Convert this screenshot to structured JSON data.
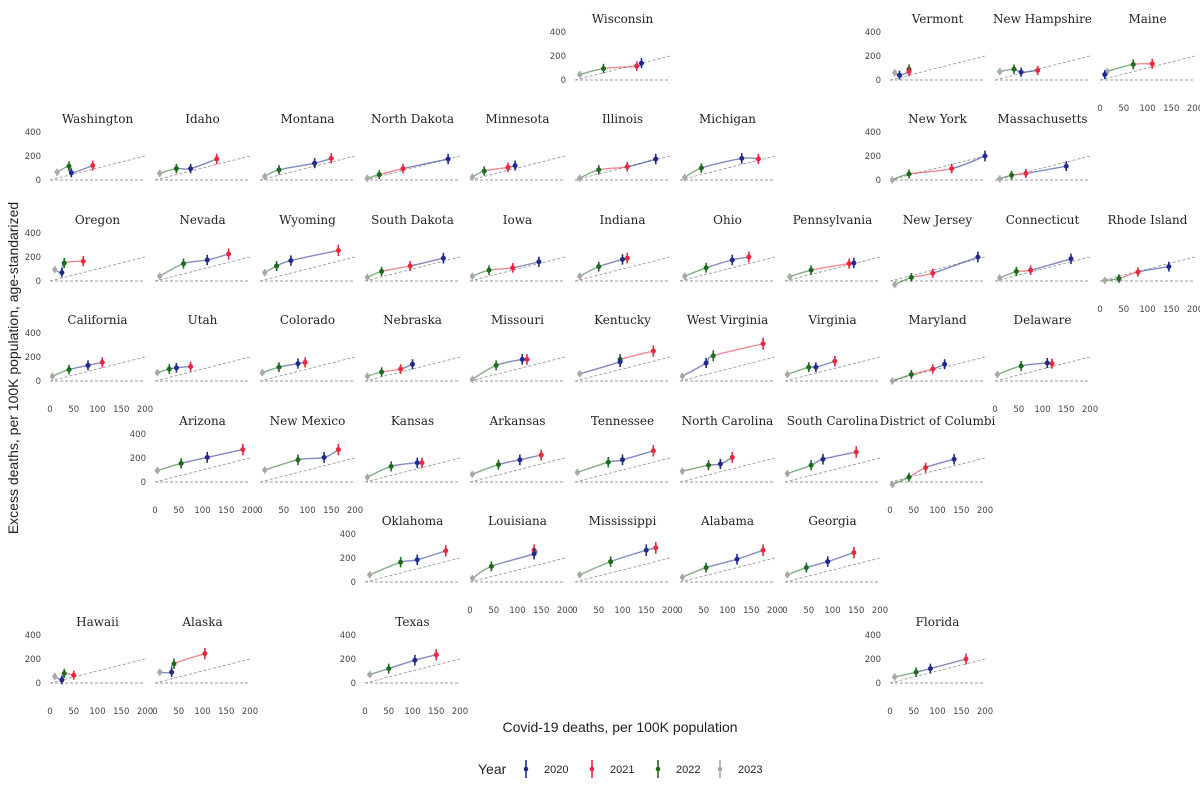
{
  "chart_data": {
    "type": "scatter",
    "xlabel": "Covid-19 deaths, per 100K population",
    "ylabel": "Excess deaths, per 100K population, age-standarized",
    "xlim": [
      0,
      200
    ],
    "ylim": [
      -20,
      400
    ],
    "x_ticks": [
      0,
      50,
      100,
      150,
      200
    ],
    "y_ticks": [
      0,
      200,
      400
    ],
    "reference_lines": [
      "y = 0 (dashed)",
      "y = x (dashed)"
    ],
    "grid": false,
    "legend": {
      "title": "Year",
      "placement": "bottom",
      "entries": [
        {
          "label": "2020",
          "color": "#1f2a8c"
        },
        {
          "label": "2021",
          "color": "#e8283c"
        },
        {
          "label": "2022",
          "color": "#1e6b1e"
        },
        {
          "label": "2023",
          "color": "#a8a8a8"
        }
      ]
    },
    "panels": [
      {
        "name": "Wisconsin",
        "pts": [
          [
            140,
            140
          ],
          [
            130,
            115
          ],
          [
            60,
            95
          ],
          [
            10,
            45
          ]
        ]
      },
      {
        "name": "Vermont",
        "pts": [
          [
            20,
            40
          ],
          [
            40,
            70
          ],
          [
            40,
            90
          ],
          [
            10,
            60
          ]
        ]
      },
      {
        "name": "New Hampshire",
        "pts": [
          [
            55,
            65
          ],
          [
            90,
            80
          ],
          [
            40,
            90
          ],
          [
            10,
            70
          ]
        ]
      },
      {
        "name": "Maine",
        "pts": [
          [
            10,
            45
          ],
          [
            110,
            135
          ],
          [
            70,
            130
          ],
          [
            15,
            70
          ]
        ]
      },
      {
        "name": "Washington",
        "pts": [
          [
            45,
            60
          ],
          [
            90,
            120
          ],
          [
            40,
            115
          ],
          [
            15,
            65
          ]
        ]
      },
      {
        "name": "Idaho",
        "pts": [
          [
            75,
            95
          ],
          [
            130,
            175
          ],
          [
            45,
            95
          ],
          [
            10,
            55
          ]
        ]
      },
      {
        "name": "Montana",
        "pts": [
          [
            115,
            140
          ],
          [
            150,
            180
          ],
          [
            40,
            85
          ],
          [
            10,
            30
          ]
        ]
      },
      {
        "name": "North Dakota",
        "pts": [
          [
            175,
            175
          ],
          [
            80,
            95
          ],
          [
            30,
            45
          ],
          [
            5,
            15
          ]
        ]
      },
      {
        "name": "Minnesota",
        "pts": [
          [
            95,
            120
          ],
          [
            80,
            105
          ],
          [
            30,
            75
          ],
          [
            5,
            25
          ]
        ]
      },
      {
        "name": "Illinois",
        "pts": [
          [
            170,
            175
          ],
          [
            110,
            110
          ],
          [
            50,
            85
          ],
          [
            10,
            15
          ]
        ]
      },
      {
        "name": "Michigan",
        "pts": [
          [
            130,
            180
          ],
          [
            165,
            175
          ],
          [
            45,
            100
          ],
          [
            10,
            20
          ]
        ]
      },
      {
        "name": "New York",
        "pts": [
          [
            200,
            200
          ],
          [
            130,
            95
          ],
          [
            40,
            50
          ],
          [
            5,
            0
          ]
        ]
      },
      {
        "name": "Massachusetts",
        "pts": [
          [
            150,
            115
          ],
          [
            65,
            55
          ],
          [
            35,
            40
          ],
          [
            10,
            10
          ]
        ]
      },
      {
        "name": "Oregon",
        "pts": [
          [
            25,
            70
          ],
          [
            70,
            165
          ],
          [
            30,
            150
          ],
          [
            10,
            95
          ]
        ]
      },
      {
        "name": "Nevada",
        "pts": [
          [
            110,
            175
          ],
          [
            155,
            225
          ],
          [
            60,
            145
          ],
          [
            10,
            40
          ]
        ]
      },
      {
        "name": "Wyoming",
        "pts": [
          [
            65,
            170
          ],
          [
            165,
            255
          ],
          [
            35,
            125
          ],
          [
            10,
            70
          ]
        ]
      },
      {
        "name": "South Dakota",
        "pts": [
          [
            165,
            190
          ],
          [
            95,
            125
          ],
          [
            35,
            80
          ],
          [
            5,
            30
          ]
        ]
      },
      {
        "name": "Iowa",
        "pts": [
          [
            145,
            160
          ],
          [
            90,
            110
          ],
          [
            40,
            90
          ],
          [
            5,
            40
          ]
        ]
      },
      {
        "name": "Indiana",
        "pts": [
          [
            100,
            180
          ],
          [
            110,
            190
          ],
          [
            50,
            120
          ],
          [
            10,
            40
          ]
        ]
      },
      {
        "name": "Ohio",
        "pts": [
          [
            110,
            175
          ],
          [
            145,
            200
          ],
          [
            55,
            110
          ],
          [
            10,
            40
          ]
        ]
      },
      {
        "name": "Pennsylvania",
        "pts": [
          [
            145,
            150
          ],
          [
            135,
            145
          ],
          [
            55,
            90
          ],
          [
            10,
            35
          ]
        ]
      },
      {
        "name": "New Jersey",
        "pts": [
          [
            185,
            200
          ],
          [
            90,
            65
          ],
          [
            45,
            30
          ],
          [
            10,
            -30
          ]
        ]
      },
      {
        "name": "Connecticut",
        "pts": [
          [
            160,
            185
          ],
          [
            75,
            90
          ],
          [
            45,
            80
          ],
          [
            10,
            25
          ]
        ]
      },
      {
        "name": "Rhode Island",
        "pts": [
          [
            145,
            120
          ],
          [
            80,
            75
          ],
          [
            40,
            20
          ],
          [
            10,
            5
          ]
        ]
      },
      {
        "name": "California",
        "pts": [
          [
            80,
            130
          ],
          [
            110,
            155
          ],
          [
            40,
            95
          ],
          [
            5,
            40
          ]
        ]
      },
      {
        "name": "Utah",
        "pts": [
          [
            45,
            110
          ],
          [
            75,
            120
          ],
          [
            30,
            100
          ],
          [
            5,
            70
          ]
        ]
      },
      {
        "name": "Colorado",
        "pts": [
          [
            80,
            145
          ],
          [
            95,
            155
          ],
          [
            40,
            115
          ],
          [
            5,
            70
          ]
        ]
      },
      {
        "name": "Nebraska",
        "pts": [
          [
            100,
            140
          ],
          [
            75,
            100
          ],
          [
            35,
            75
          ],
          [
            5,
            40
          ]
        ]
      },
      {
        "name": "Missouri",
        "pts": [
          [
            110,
            180
          ],
          [
            120,
            180
          ],
          [
            55,
            130
          ],
          [
            5,
            15
          ]
        ]
      },
      {
        "name": "Kentucky",
        "pts": [
          [
            95,
            160
          ],
          [
            165,
            250
          ],
          [
            95,
            180
          ],
          [
            10,
            60
          ]
        ]
      },
      {
        "name": "West Virginia",
        "pts": [
          [
            55,
            150
          ],
          [
            175,
            310
          ],
          [
            70,
            210
          ],
          [
            5,
            40
          ]
        ]
      },
      {
        "name": "Virginia",
        "pts": [
          [
            65,
            115
          ],
          [
            105,
            165
          ],
          [
            50,
            115
          ],
          [
            5,
            55
          ]
        ]
      },
      {
        "name": "Maryland",
        "pts": [
          [
            115,
            140
          ],
          [
            90,
            100
          ],
          [
            45,
            55
          ],
          [
            5,
            0
          ]
        ]
      },
      {
        "name": "Delaware",
        "pts": [
          [
            110,
            150
          ],
          [
            120,
            145
          ],
          [
            55,
            125
          ],
          [
            5,
            55
          ]
        ]
      },
      {
        "name": "Arizona",
        "pts": [
          [
            110,
            205
          ],
          [
            185,
            270
          ],
          [
            55,
            155
          ],
          [
            5,
            95
          ]
        ]
      },
      {
        "name": "New Mexico",
        "pts": [
          [
            135,
            205
          ],
          [
            165,
            270
          ],
          [
            80,
            185
          ],
          [
            10,
            100
          ]
        ]
      },
      {
        "name": "Kansas",
        "pts": [
          [
            110,
            160
          ],
          [
            120,
            160
          ],
          [
            55,
            130
          ],
          [
            5,
            40
          ]
        ]
      },
      {
        "name": "Arkansas",
        "pts": [
          [
            105,
            185
          ],
          [
            150,
            225
          ],
          [
            60,
            145
          ],
          [
            5,
            65
          ]
        ]
      },
      {
        "name": "Tennessee",
        "pts": [
          [
            100,
            185
          ],
          [
            165,
            260
          ],
          [
            70,
            165
          ],
          [
            5,
            80
          ]
        ]
      },
      {
        "name": "North Carolina",
        "pts": [
          [
            85,
            150
          ],
          [
            110,
            205
          ],
          [
            60,
            140
          ],
          [
            5,
            90
          ]
        ]
      },
      {
        "name": "South Carolina",
        "pts": [
          [
            80,
            190
          ],
          [
            150,
            250
          ],
          [
            55,
            140
          ],
          [
            5,
            70
          ]
        ]
      },
      {
        "name": "District of Columbi",
        "pts": [
          [
            135,
            190
          ],
          [
            75,
            120
          ],
          [
            40,
            40
          ],
          [
            5,
            -20
          ]
        ]
      },
      {
        "name": "Oklahoma",
        "pts": [
          [
            110,
            185
          ],
          [
            170,
            260
          ],
          [
            75,
            165
          ],
          [
            10,
            60
          ]
        ]
      },
      {
        "name": "Louisiana",
        "pts": [
          [
            135,
            235
          ],
          [
            135,
            265
          ],
          [
            45,
            130
          ],
          [
            5,
            30
          ]
        ]
      },
      {
        "name": "Mississippi",
        "pts": [
          [
            150,
            265
          ],
          [
            170,
            285
          ],
          [
            75,
            170
          ],
          [
            10,
            60
          ]
        ]
      },
      {
        "name": "Alabama",
        "pts": [
          [
            120,
            190
          ],
          [
            175,
            265
          ],
          [
            55,
            120
          ],
          [
            5,
            40
          ]
        ]
      },
      {
        "name": "Georgia",
        "pts": [
          [
            90,
            170
          ],
          [
            145,
            245
          ],
          [
            45,
            120
          ],
          [
            5,
            60
          ]
        ]
      },
      {
        "name": "Hawaii",
        "pts": [
          [
            25,
            25
          ],
          [
            50,
            65
          ],
          [
            30,
            80
          ],
          [
            10,
            55
          ]
        ]
      },
      {
        "name": "Alaska",
        "pts": [
          [
            35,
            90
          ],
          [
            105,
            245
          ],
          [
            40,
            160
          ],
          [
            10,
            90
          ]
        ]
      },
      {
        "name": "Texas",
        "pts": [
          [
            105,
            190
          ],
          [
            150,
            235
          ],
          [
            50,
            120
          ],
          [
            10,
            70
          ]
        ]
      },
      {
        "name": "Florida",
        "pts": [
          [
            85,
            120
          ],
          [
            160,
            200
          ],
          [
            55,
            90
          ],
          [
            10,
            50
          ]
        ]
      }
    ]
  }
}
